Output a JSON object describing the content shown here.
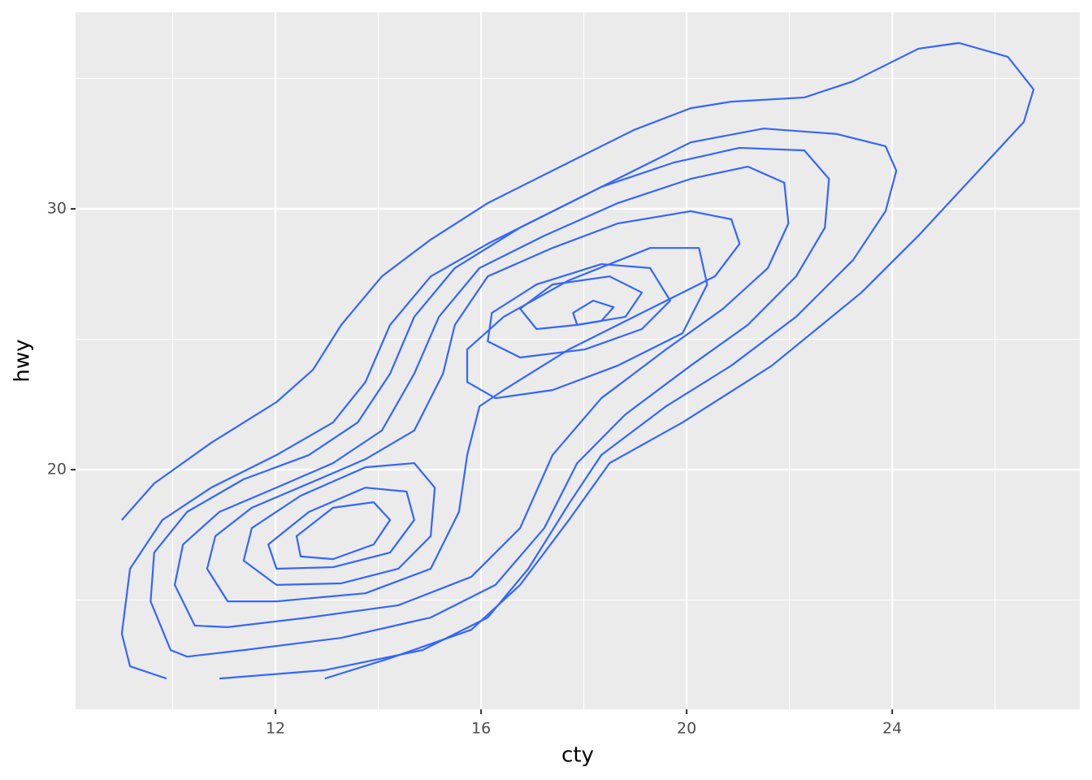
{
  "chart_data": {
    "type": "contour",
    "x_label": "cty",
    "y_label": "hwy",
    "xlim": [
      8.11,
      27.65
    ],
    "ylim": [
      10.81,
      37.54
    ],
    "xticks": [
      12,
      16,
      20,
      24
    ],
    "yticks": [
      20,
      30
    ],
    "grid": true,
    "color": "#3366ff",
    "contours": [
      {
        "closed": false,
        "x": [
          9.01,
          9.64,
          10.75,
          12.02,
          12.73,
          13.28,
          14.07,
          15.02,
          16.13,
          17.71,
          18.97,
          20.08,
          20.87,
          22.29,
          23.24,
          24.51,
          25.3,
          26.25,
          26.75,
          26.56,
          25.61,
          24.51,
          23.4,
          21.66,
          19.92,
          18.5,
          17.71,
          16.76,
          15.81,
          14.23,
          12.96
        ],
        "y": [
          18.07,
          19.47,
          21.03,
          22.59,
          23.83,
          25.55,
          27.41,
          28.82,
          30.22,
          31.78,
          33.02,
          33.86,
          34.11,
          34.27,
          34.89,
          36.14,
          36.36,
          35.83,
          34.58,
          33.33,
          31.31,
          28.97,
          26.79,
          23.99,
          21.81,
          20.25,
          18.07,
          15.58,
          13.86,
          12.77,
          11.99
        ]
      },
      {
        "closed": false,
        "x": [
          9.88,
          9.17,
          9.01,
          9.17,
          9.8,
          10.75,
          12.02,
          13.12,
          13.75,
          14.23,
          15.02,
          16.13,
          17.71,
          18.97,
          20.08,
          21.5,
          22.92,
          23.87,
          24.08,
          23.87,
          23.24,
          22.13,
          20.87,
          19.6,
          18.34,
          17.71,
          16.92,
          16.13,
          14.86,
          12.96,
          10.91
        ],
        "y": [
          11.99,
          12.46,
          13.71,
          16.2,
          18.07,
          19.31,
          20.56,
          21.81,
          23.36,
          25.55,
          27.41,
          28.66,
          30.22,
          31.46,
          32.55,
          33.08,
          32.87,
          32.4,
          31.46,
          29.91,
          28.04,
          25.86,
          23.99,
          22.43,
          20.56,
          18.69,
          16.2,
          14.33,
          13.08,
          12.31,
          11.99
        ]
      },
      {
        "closed": true,
        "x": [
          9.96,
          9.57,
          9.64,
          10.28,
          11.38,
          12.65,
          13.6,
          14.23,
          14.7,
          15.49,
          16.76,
          18.34,
          19.76,
          21.03,
          22.29,
          22.77,
          22.69,
          22.13,
          21.19,
          20.08,
          18.81,
          17.87,
          17.23,
          16.28,
          15.02,
          13.28,
          11.38,
          10.28
        ],
        "y": [
          13.08,
          14.95,
          16.82,
          18.38,
          19.63,
          20.56,
          21.81,
          23.68,
          25.86,
          27.73,
          29.28,
          30.84,
          31.78,
          32.34,
          32.24,
          31.15,
          29.28,
          27.41,
          25.55,
          23.99,
          22.12,
          20.25,
          17.76,
          15.58,
          14.33,
          13.55,
          13.08,
          12.83
        ]
      },
      {
        "closed": true,
        "x": [
          10.43,
          10.04,
          10.2,
          10.91,
          12.02,
          13.12,
          14.07,
          14.7,
          15.18,
          15.97,
          17.23,
          18.66,
          20.08,
          21.19,
          21.9,
          21.98,
          21.58,
          20.71,
          19.6,
          18.34,
          17.39,
          16.76,
          15.81,
          14.39,
          12.65,
          11.07
        ],
        "y": [
          14.02,
          15.58,
          17.13,
          18.38,
          19.31,
          20.25,
          21.5,
          23.68,
          25.86,
          27.73,
          28.97,
          30.22,
          31.15,
          31.62,
          31.0,
          29.44,
          27.73,
          26.17,
          24.61,
          22.74,
          20.56,
          17.76,
          15.89,
          14.8,
          14.33,
          13.96
        ]
      },
      {
        "closed": true,
        "x": [
          11.07,
          10.67,
          10.83,
          11.54,
          12.65,
          13.75,
          14.7,
          15.26,
          15.49,
          16.13,
          17.39,
          18.66,
          20.08,
          20.87,
          21.03,
          20.55,
          19.29,
          17.71,
          16.44,
          15.97,
          15.73,
          15.57,
          15.02,
          13.75,
          12.02
        ],
        "y": [
          14.95,
          16.2,
          17.45,
          18.54,
          19.47,
          20.4,
          21.5,
          23.68,
          25.55,
          27.41,
          28.5,
          29.44,
          29.91,
          29.6,
          28.66,
          27.41,
          26.17,
          24.61,
          23.05,
          22.43,
          20.56,
          18.38,
          16.2,
          15.26,
          14.95
        ]
      },
      {
        "closed": true,
        "x": [
          16.28,
          15.73,
          15.73,
          16.44,
          17.71,
          19.29,
          20.24,
          20.4,
          19.92,
          18.66,
          17.39
        ],
        "y": [
          22.74,
          23.36,
          24.61,
          25.86,
          27.26,
          28.5,
          28.5,
          27.1,
          25.23,
          23.99,
          23.05
        ]
      },
      {
        "closed": true,
        "x": [
          16.76,
          16.13,
          16.21,
          17.08,
          18.34,
          19.29,
          19.68,
          19.13,
          18.02
        ],
        "y": [
          24.3,
          24.92,
          26.01,
          27.1,
          27.88,
          27.73,
          26.48,
          25.39,
          24.61
        ]
      },
      {
        "closed": true,
        "x": [
          17.08,
          16.76,
          17.39,
          18.5,
          19.13,
          18.81,
          17.87
        ],
        "y": [
          25.39,
          26.17,
          27.1,
          27.41,
          26.79,
          25.86,
          25.55
        ]
      },
      {
        "closed": true,
        "x": [
          17.87,
          17.79,
          18.18,
          18.58,
          18.34
        ],
        "y": [
          25.55,
          26.01,
          26.48,
          26.23,
          25.7
        ]
      },
      {
        "closed": true,
        "x": [
          12.02,
          11.38,
          11.54,
          12.49,
          13.75,
          14.7,
          15.1,
          15.02,
          14.39,
          13.28
        ],
        "y": [
          15.58,
          16.51,
          17.76,
          19.0,
          20.09,
          20.25,
          19.31,
          17.45,
          16.2,
          15.64
        ]
      },
      {
        "closed": true,
        "x": [
          12.02,
          11.86,
          12.65,
          13.75,
          14.55,
          14.7,
          14.23,
          13.12
        ],
        "y": [
          16.2,
          17.13,
          18.38,
          19.31,
          19.16,
          18.07,
          16.82,
          16.26
        ]
      },
      {
        "closed": true,
        "x": [
          12.49,
          12.41,
          13.12,
          13.91,
          14.23,
          13.91,
          13.12
        ],
        "y": [
          16.67,
          17.45,
          18.54,
          18.75,
          18.07,
          17.13,
          16.57
        ]
      }
    ]
  }
}
